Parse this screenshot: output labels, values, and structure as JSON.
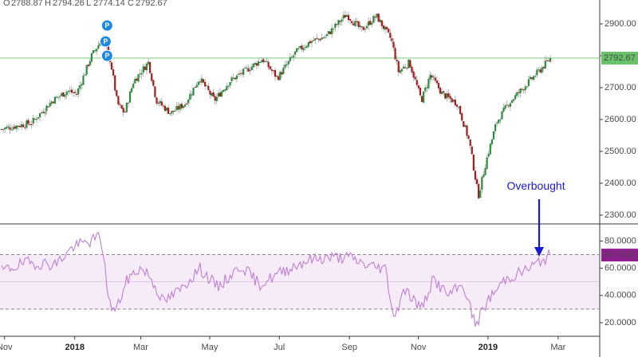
{
  "chart_data": [
    {
      "type": "candlestick",
      "header": {
        "o_label": "O",
        "o_value": "2788.87",
        "h_label": "H",
        "h_value": "2794.26",
        "l_label": "L",
        "l_value": "2774.14",
        "c_label": "C",
        "c_value": "2792.67"
      },
      "last_price": {
        "value": 2792.67,
        "label": "2792.67",
        "color": "#67c26a"
      },
      "ylim": [
        2275,
        2960
      ],
      "yticks": [
        {
          "value": 2300,
          "label": "2300.00"
        },
        {
          "value": 2400,
          "label": "2400.00"
        },
        {
          "value": 2500,
          "label": "2500.00"
        },
        {
          "value": 2600,
          "label": "2600.00"
        },
        {
          "value": 2700,
          "label": "2700.00"
        },
        {
          "value": 2800,
          "label": "2800.00"
        },
        {
          "value": 2900,
          "label": "2900.00"
        }
      ],
      "colors": {
        "up": "#2e8b3e",
        "down": "#a01d1d",
        "wick": "#555555"
      },
      "markers": {
        "label": "P",
        "color": "#1e88e5",
        "values": [
          2895,
          2845,
          2800
        ]
      },
      "keypoints": [
        {
          "t": 0.0,
          "c": 2570
        },
        {
          "t": 0.05,
          "c": 2590
        },
        {
          "t": 0.085,
          "c": 2660
        },
        {
          "t": 0.11,
          "c": 2690
        },
        {
          "t": 0.125,
          "c": 2680
        },
        {
          "t": 0.15,
          "c": 2800
        },
        {
          "t": 0.17,
          "c": 2860
        },
        {
          "t": 0.182,
          "c": 2780
        },
        {
          "t": 0.193,
          "c": 2650
        },
        {
          "t": 0.205,
          "c": 2620
        },
        {
          "t": 0.22,
          "c": 2720
        },
        {
          "t": 0.245,
          "c": 2780
        },
        {
          "t": 0.258,
          "c": 2660
        },
        {
          "t": 0.282,
          "c": 2620
        },
        {
          "t": 0.306,
          "c": 2650
        },
        {
          "t": 0.33,
          "c": 2730
        },
        {
          "t": 0.355,
          "c": 2660
        },
        {
          "t": 0.38,
          "c": 2720
        },
        {
          "t": 0.412,
          "c": 2760
        },
        {
          "t": 0.435,
          "c": 2790
        },
        {
          "t": 0.46,
          "c": 2730
        },
        {
          "t": 0.49,
          "c": 2810
        },
        {
          "t": 0.515,
          "c": 2845
        },
        {
          "t": 0.54,
          "c": 2860
        },
        {
          "t": 0.575,
          "c": 2930
        },
        {
          "t": 0.6,
          "c": 2880
        },
        {
          "t": 0.625,
          "c": 2925
        },
        {
          "t": 0.65,
          "c": 2850
        },
        {
          "t": 0.662,
          "c": 2750
        },
        {
          "t": 0.68,
          "c": 2780
        },
        {
          "t": 0.7,
          "c": 2660
        },
        {
          "t": 0.715,
          "c": 2740
        },
        {
          "t": 0.735,
          "c": 2680
        },
        {
          "t": 0.76,
          "c": 2650
        },
        {
          "t": 0.78,
          "c": 2530
        },
        {
          "t": 0.795,
          "c": 2360
        },
        {
          "t": 0.808,
          "c": 2470
        },
        {
          "t": 0.825,
          "c": 2590
        },
        {
          "t": 0.845,
          "c": 2650
        },
        {
          "t": 0.87,
          "c": 2700
        },
        {
          "t": 0.9,
          "c": 2760
        },
        {
          "t": 0.915,
          "c": 2792.67
        }
      ]
    },
    {
      "type": "line",
      "last_value": {
        "value": 69.703,
        "label": "69.7030",
        "color": "#8e1d8e"
      },
      "ylim": [
        10,
        92
      ],
      "yticks": [
        {
          "value": 20,
          "label": "20.0000"
        },
        {
          "value": 40,
          "label": "40.0000"
        },
        {
          "value": 60,
          "label": "60.0000"
        },
        {
          "value": 80,
          "label": "80.0000"
        }
      ],
      "band": {
        "upper": 70,
        "lower": 30,
        "color": "#9c27b0"
      },
      "line_color": "#c07ed6",
      "annotation": {
        "text": "Overbought",
        "color": "#1a1ad6"
      },
      "keypoints": [
        {
          "t": 0.0,
          "v": 58
        },
        {
          "t": 0.04,
          "v": 64
        },
        {
          "t": 0.09,
          "v": 63
        },
        {
          "t": 0.12,
          "v": 76
        },
        {
          "t": 0.15,
          "v": 80
        },
        {
          "t": 0.165,
          "v": 84
        },
        {
          "t": 0.18,
          "v": 34
        },
        {
          "t": 0.19,
          "v": 28
        },
        {
          "t": 0.21,
          "v": 52
        },
        {
          "t": 0.23,
          "v": 60
        },
        {
          "t": 0.245,
          "v": 56
        },
        {
          "t": 0.27,
          "v": 35
        },
        {
          "t": 0.3,
          "v": 45
        },
        {
          "t": 0.33,
          "v": 60
        },
        {
          "t": 0.36,
          "v": 46
        },
        {
          "t": 0.4,
          "v": 62
        },
        {
          "t": 0.43,
          "v": 48
        },
        {
          "t": 0.47,
          "v": 58
        },
        {
          "t": 0.51,
          "v": 66
        },
        {
          "t": 0.545,
          "v": 68
        },
        {
          "t": 0.58,
          "v": 68
        },
        {
          "t": 0.61,
          "v": 62
        },
        {
          "t": 0.64,
          "v": 60
        },
        {
          "t": 0.655,
          "v": 22
        },
        {
          "t": 0.67,
          "v": 46
        },
        {
          "t": 0.7,
          "v": 30
        },
        {
          "t": 0.72,
          "v": 52
        },
        {
          "t": 0.745,
          "v": 40
        },
        {
          "t": 0.77,
          "v": 48
        },
        {
          "t": 0.79,
          "v": 18
        },
        {
          "t": 0.81,
          "v": 36
        },
        {
          "t": 0.84,
          "v": 52
        },
        {
          "t": 0.88,
          "v": 60
        },
        {
          "t": 0.915,
          "v": 69.703
        }
      ]
    }
  ],
  "xaxis": {
    "ticks": [
      {
        "t": 0.005,
        "label": "Nov",
        "bold": false
      },
      {
        "t": 0.122,
        "label": "2018",
        "bold": true
      },
      {
        "t": 0.232,
        "label": "Mar",
        "bold": false
      },
      {
        "t": 0.347,
        "label": "May",
        "bold": false
      },
      {
        "t": 0.463,
        "label": "Jul",
        "bold": false
      },
      {
        "t": 0.58,
        "label": "Sep",
        "bold": false
      },
      {
        "t": 0.695,
        "label": "Nov",
        "bold": false
      },
      {
        "t": 0.811,
        "label": "2019",
        "bold": true
      },
      {
        "t": 0.928,
        "label": "Mar",
        "bold": false
      }
    ]
  }
}
